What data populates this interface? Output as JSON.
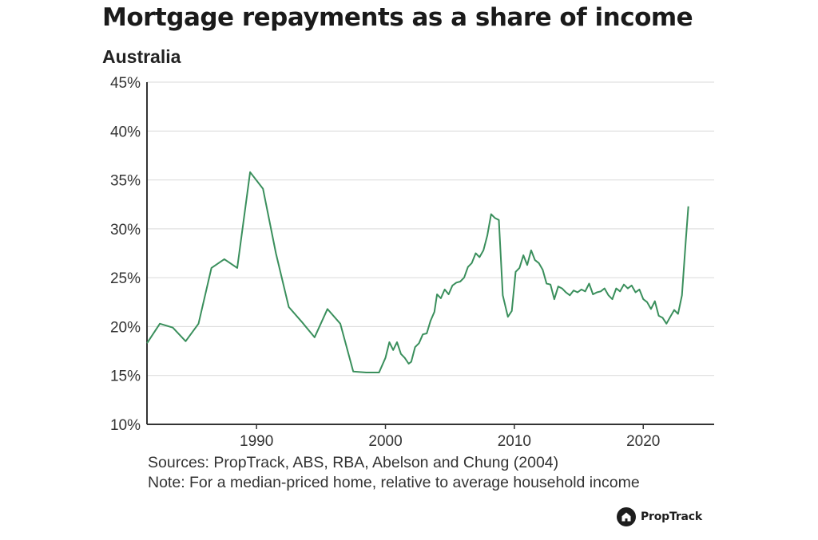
{
  "chart_data": {
    "type": "line",
    "title": "Mortgage repayments as a share of income",
    "subtitle": "Australia",
    "xlabel": "",
    "ylabel": "",
    "xlim": [
      1981.5,
      2025.5
    ],
    "ylim": [
      10,
      45
    ],
    "x_ticks": [
      "1990",
      "2000",
      "2010",
      "2020"
    ],
    "y_ticks": [
      "10%",
      "15%",
      "20%",
      "25%",
      "30%",
      "35%",
      "40%",
      "45%"
    ],
    "grid": "horizontal",
    "legend": "none",
    "series": [
      {
        "color": "#3a8f5c",
        "x": [
          1981.5,
          1982.5,
          1983.5,
          1984.5,
          1985.5,
          1986.5,
          1987.5,
          1988.5,
          1989.5,
          1990.5,
          1991.5,
          1992.5,
          1993.5,
          1994.5,
          1995.5,
          1996.5,
          1997.5,
          1998.5,
          1999.5,
          2000.0,
          2000.3,
          2000.6,
          2000.9,
          2001.2,
          2001.5,
          2001.8,
          2002.0,
          2002.3,
          2002.6,
          2002.9,
          2003.2,
          2003.5,
          2003.8,
          2004.0,
          2004.3,
          2004.6,
          2004.9,
          2005.2,
          2005.5,
          2005.8,
          2006.1,
          2006.4,
          2006.7,
          2007.0,
          2007.3,
          2007.6,
          2007.9,
          2008.2,
          2008.5,
          2008.8,
          2009.1,
          2009.5,
          2009.8,
          2010.1,
          2010.4,
          2010.7,
          2011.0,
          2011.3,
          2011.6,
          2011.9,
          2012.2,
          2012.5,
          2012.8,
          2013.1,
          2013.4,
          2013.7,
          2014.0,
          2014.3,
          2014.6,
          2014.9,
          2015.2,
          2015.5,
          2015.8,
          2016.1,
          2016.4,
          2016.7,
          2017.0,
          2017.3,
          2017.6,
          2017.9,
          2018.2,
          2018.5,
          2018.8,
          2019.1,
          2019.4,
          2019.7,
          2020.0,
          2020.3,
          2020.6,
          2020.9,
          2021.2,
          2021.5,
          2021.8,
          2022.1,
          2022.4,
          2022.7,
          2023.0,
          2023.3,
          2023.5
        ],
        "values": [
          18.3,
          20.3,
          19.9,
          18.5,
          20.3,
          26.0,
          26.9,
          26.0,
          35.8,
          34.1,
          27.5,
          22.0,
          20.5,
          18.9,
          21.8,
          20.3,
          15.4,
          15.3,
          15.3,
          16.8,
          18.4,
          17.6,
          18.4,
          17.2,
          16.8,
          16.2,
          16.4,
          17.9,
          18.3,
          19.2,
          19.3,
          20.6,
          21.5,
          23.3,
          22.9,
          23.8,
          23.3,
          24.2,
          24.5,
          24.6,
          25.0,
          26.1,
          26.5,
          27.5,
          27.1,
          27.8,
          29.3,
          31.5,
          31.1,
          30.9,
          23.2,
          21.0,
          21.6,
          25.6,
          26.0,
          27.3,
          26.3,
          27.8,
          26.8,
          26.5,
          25.8,
          24.4,
          24.3,
          22.8,
          24.1,
          23.9,
          23.5,
          23.2,
          23.7,
          23.5,
          23.8,
          23.6,
          24.4,
          23.3,
          23.5,
          23.6,
          23.9,
          23.2,
          22.8,
          23.9,
          23.6,
          24.3,
          23.9,
          24.2,
          23.5,
          23.8,
          22.8,
          22.5,
          21.8,
          22.6,
          21.1,
          20.9,
          20.3,
          21.0,
          21.7,
          21.3,
          23.2,
          28.8,
          32.3
        ]
      }
    ]
  },
  "footer": {
    "sources": "Sources: PropTrack, ABS, RBA, Abelson and Chung (2004)",
    "note": "Note: For a median-priced home, relative to average household income"
  },
  "brand": {
    "name": "PropTrack",
    "icon": "house-icon"
  }
}
